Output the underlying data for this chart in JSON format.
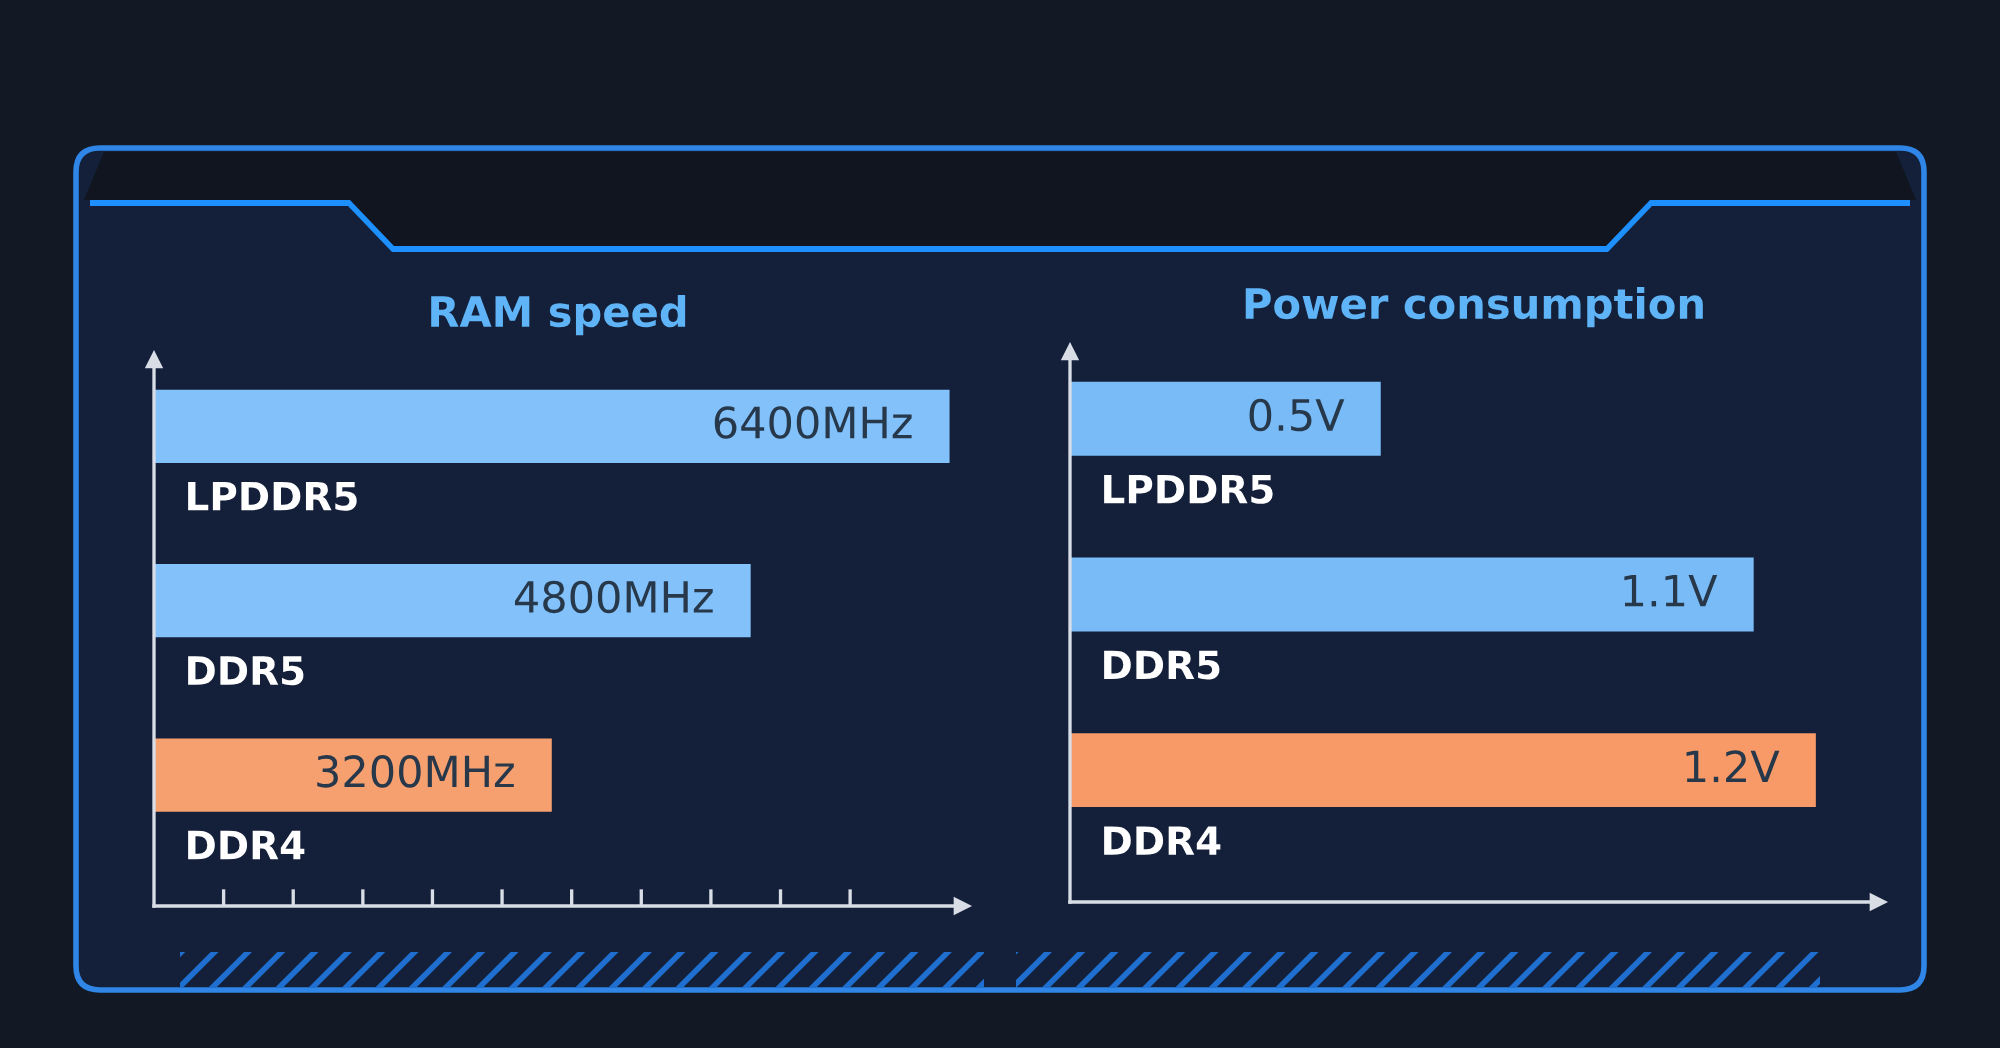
{
  "chart_data": [
    {
      "type": "bar",
      "orientation": "horizontal",
      "title": "RAM speed",
      "categories": [
        "LPDDR5",
        "DDR5",
        "DDR4"
      ],
      "values": [
        6400,
        4800,
        3200
      ],
      "value_labels": [
        "6400MHz",
        "4800MHz",
        "3200MHz"
      ],
      "colors": [
        "#82c1f9",
        "#82c1f9",
        "#f7a06f"
      ],
      "xlim": [
        0,
        6500
      ],
      "xticks": [
        {
          "value": 560,
          "label": null
        },
        {
          "value": 1120,
          "label": null
        },
        {
          "value": 1680,
          "label": null
        },
        {
          "value": 2240,
          "label": null
        },
        {
          "value": 2800,
          "label": null
        },
        {
          "value": 3360,
          "label": null
        },
        {
          "value": 3920,
          "label": null
        },
        {
          "value": 4480,
          "label": null
        },
        {
          "value": 5040,
          "label": null
        },
        {
          "value": 5600,
          "label": null
        }
      ],
      "tick_labels": "y"
    },
    {
      "type": "bar",
      "orientation": "horizontal",
      "title": "Power consumption",
      "categories": [
        "LPDDR5",
        "DDR5",
        "DDR4"
      ],
      "values": [
        0.5,
        1.1,
        1.2
      ],
      "value_labels": [
        "0.5V",
        "1.1V",
        "1.2V"
      ],
      "colors": [
        "#78bbf7",
        "#78bbf7",
        "#f79a68"
      ],
      "xlim": [
        0,
        1.3
      ],
      "tick_labels": "y"
    }
  ]
}
